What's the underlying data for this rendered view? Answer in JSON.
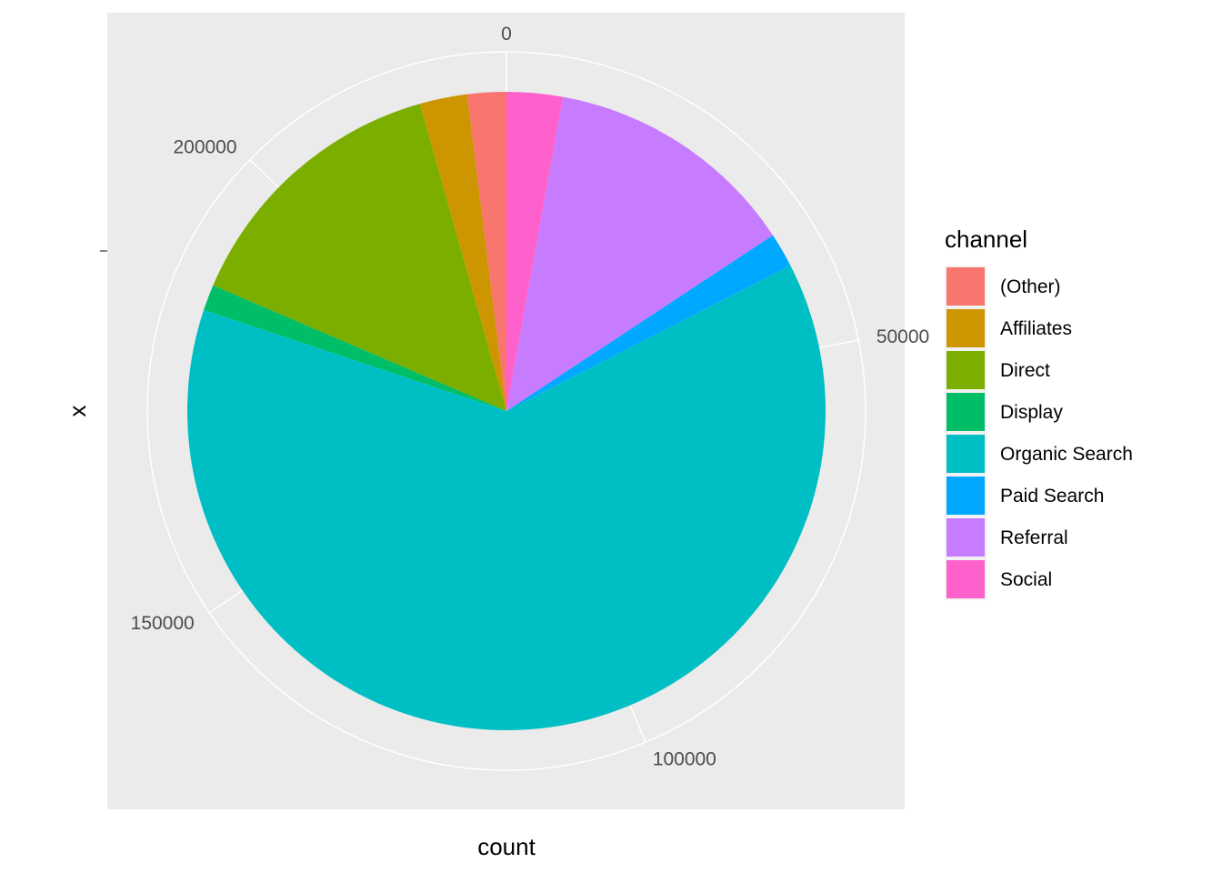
{
  "chart_data": {
    "type": "pie",
    "coord": "polar",
    "xlabel": "count",
    "ylabel": "x",
    "legend": {
      "title": "channel",
      "position": "right"
    },
    "angle_axis": {
      "ticks": [
        0,
        50000,
        100000,
        150000,
        200000
      ],
      "labels": [
        "0",
        "50000",
        "100000",
        "150000",
        "200000"
      ],
      "range": [
        0,
        229000
      ]
    },
    "grid": true,
    "background": "#EBEBEB",
    "slices": [
      {
        "label": "Social",
        "value": 6500,
        "color": "#FF61CC"
      },
      {
        "label": "Referral",
        "value": 29500,
        "color": "#C77CFF"
      },
      {
        "label": "Paid Search",
        "value": 4000,
        "color": "#00A9FF"
      },
      {
        "label": "Organic Search",
        "value": 143500,
        "color": "#00BFC4"
      },
      {
        "label": "Display",
        "value": 3000,
        "color": "#00BE67"
      },
      {
        "label": "Direct",
        "value": 32500,
        "color": "#7CAE00"
      },
      {
        "label": "Affiliates",
        "value": 5500,
        "color": "#CD9600"
      },
      {
        "label": "(Other)",
        "value": 4500,
        "color": "#F8766D"
      }
    ],
    "legend_order": [
      "(Other)",
      "Affiliates",
      "Direct",
      "Display",
      "Organic Search",
      "Paid Search",
      "Referral",
      "Social"
    ]
  }
}
